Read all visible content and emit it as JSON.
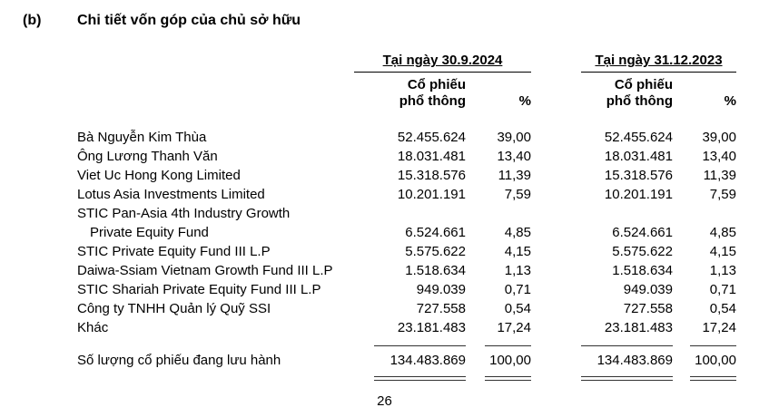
{
  "heading": {
    "section": "(b)",
    "title": "Chi tiết vốn góp của chủ sở hữu"
  },
  "table": {
    "period1": "Tại ngày 30.9.2024",
    "period2": "Tại ngày 31.12.2023",
    "col_shares_line1": "Cổ phiếu",
    "col_shares_line2": "phổ thông",
    "col_percent": "%",
    "rows": [
      {
        "label": "Bà Nguyễn Kim Thùa",
        "shares_2024": "52.455.624",
        "pct_2024": "39,00",
        "shares_2023": "52.455.624",
        "pct_2023": "39,00"
      },
      {
        "label": "Ông Lương Thanh Văn",
        "shares_2024": "18.031.481",
        "pct_2024": "13,40",
        "shares_2023": "18.031.481",
        "pct_2023": "13,40"
      },
      {
        "label": "Viet Uc Hong Kong Limited",
        "shares_2024": "15.318.576",
        "pct_2024": "11,39",
        "shares_2023": "15.318.576",
        "pct_2023": "11,39"
      },
      {
        "label": "Lotus Asia Investments Limited",
        "shares_2024": "10.201.191",
        "pct_2024": "7,59",
        "shares_2023": "10.201.191",
        "pct_2023": "7,59"
      },
      {
        "label": "STIC Pan-Asia 4th Industry Growth",
        "shares_2024": "",
        "pct_2024": "",
        "shares_2023": "",
        "pct_2023": ""
      },
      {
        "label": "Private Equity Fund",
        "indent": true,
        "shares_2024": "6.524.661",
        "pct_2024": "4,85",
        "shares_2023": "6.524.661",
        "pct_2023": "4,85"
      },
      {
        "label": "STIC Private Equity Fund III L.P",
        "shares_2024": "5.575.622",
        "pct_2024": "4,15",
        "shares_2023": "5.575.622",
        "pct_2023": "4,15"
      },
      {
        "label": "Daiwa-Ssiam Vietnam Growth Fund III L.P",
        "shares_2024": "1.518.634",
        "pct_2024": "1,13",
        "shares_2023": "1.518.634",
        "pct_2023": "1,13"
      },
      {
        "label": "STIC Shariah Private Equity Fund III L.P",
        "shares_2024": "949.039",
        "pct_2024": "0,71",
        "shares_2023": "949.039",
        "pct_2023": "0,71"
      },
      {
        "label": "Công ty TNHH Quản lý Quỹ SSI",
        "shares_2024": "727.558",
        "pct_2024": "0,54",
        "shares_2023": "727.558",
        "pct_2023": "0,54"
      },
      {
        "label": "Khác",
        "shares_2024": "23.181.483",
        "pct_2024": "17,24",
        "shares_2023": "23.181.483",
        "pct_2023": "17,24"
      }
    ],
    "total": {
      "label": "Số lượng cổ phiếu đang lưu hành",
      "shares_2024": "134.483.869",
      "pct_2024": "100,00",
      "shares_2023": "134.483.869",
      "pct_2023": "100,00"
    }
  },
  "footer": {
    "page_number": "26"
  }
}
